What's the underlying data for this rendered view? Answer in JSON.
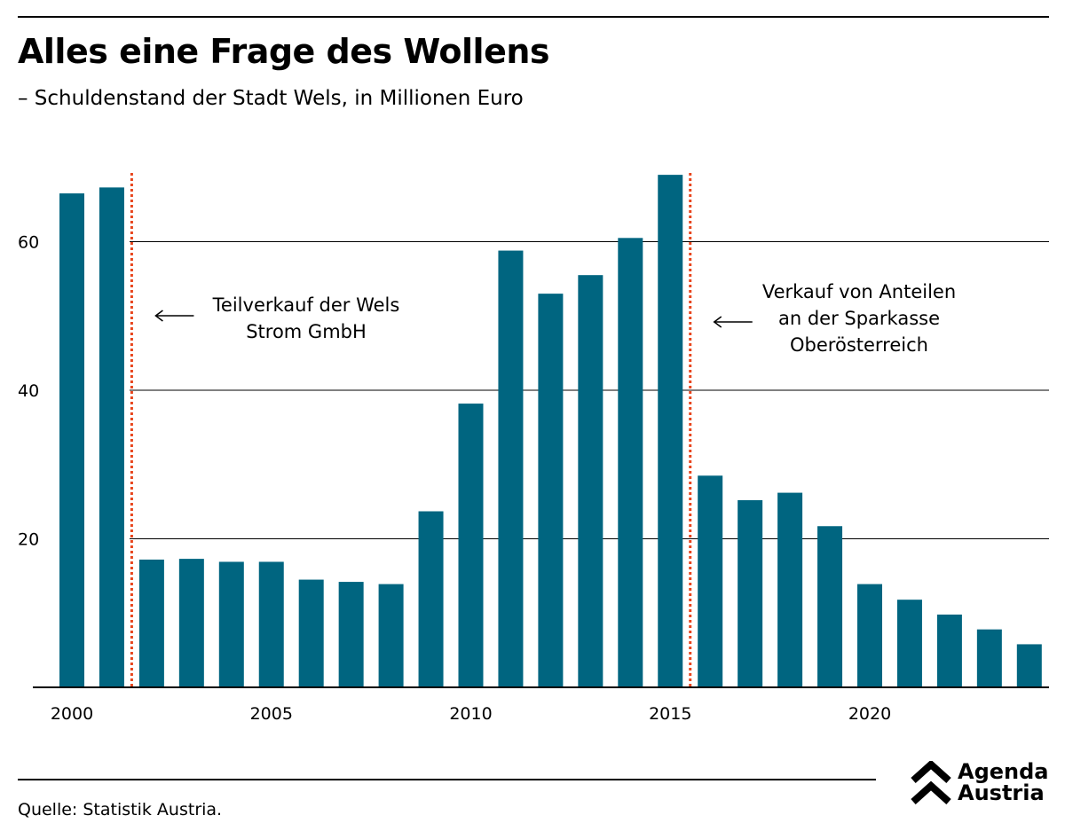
{
  "title": "Alles eine Frage des Wollens",
  "subtitle": "– Schuldenstand der Stadt Wels, in Millionen Euro",
  "source": "Quelle: Statistik Austria.",
  "logo": {
    "line1": "Agenda",
    "line2": "Austria"
  },
  "colors": {
    "bar": "#006580",
    "marker_line": "#e8461e",
    "grid": "#000000",
    "text": "#000000"
  },
  "chart_data": {
    "type": "bar",
    "title": "Alles eine Frage des Wollens",
    "subtitle": "– Schuldenstand der Stadt Wels, in Millionen Euro",
    "x": [
      2000,
      2001,
      2002,
      2003,
      2004,
      2005,
      2006,
      2007,
      2008,
      2009,
      2010,
      2011,
      2012,
      2013,
      2014,
      2015,
      2016,
      2017,
      2018,
      2019,
      2020,
      2021,
      2022,
      2023,
      2024
    ],
    "values": [
      66.5,
      67.3,
      17.2,
      17.3,
      16.9,
      16.9,
      14.5,
      14.2,
      13.9,
      23.7,
      38.2,
      58.8,
      53.0,
      55.5,
      60.5,
      69.0,
      28.5,
      25.2,
      26.2,
      21.7,
      13.9,
      11.8,
      9.8,
      7.8,
      5.8
    ],
    "xticks": [
      "2000",
      "2005",
      "2010",
      "2015",
      "2020"
    ],
    "yticks": [
      "20",
      "40",
      "60"
    ],
    "ylim": [
      0,
      72
    ],
    "grid": true,
    "annotations": [
      {
        "lines": [
          "Teilverkauf der Wels",
          "Strom GmbH"
        ],
        "after_year": 2001
      },
      {
        "lines": [
          "Verkauf von Anteilen",
          "an der Sparkasse",
          "Oberösterreich"
        ],
        "after_year": 2015
      }
    ]
  }
}
